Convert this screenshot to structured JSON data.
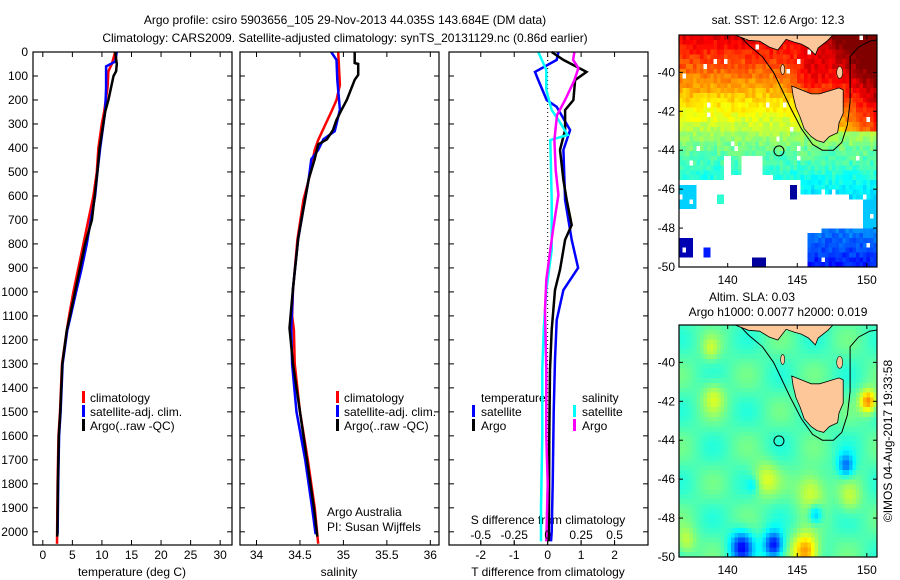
{
  "title": {
    "line1": "Argo profile: csiro 5903656_105 29-Nov-2013 44.035S 143.684E (DM data)",
    "line2": "Climatology: CARS2009. Satellite-adjusted climatology: synTS_20131129.nc (0.86d earlier)"
  },
  "credits": {
    "line1": "Argo Australia",
    "line2": "PI: Susan Wijffels"
  },
  "watermark": "©IMOS 04-Aug-2017 19:33:58",
  "chart_data": [
    {
      "type": "line",
      "id": "temperature",
      "xlabel": "temperature (deg C)",
      "ylabel": "depth",
      "xlim": [
        -1.66,
        32
      ],
      "ylim": [
        2055,
        0
      ],
      "xticks": [
        0,
        5,
        10,
        15,
        20,
        25,
        30
      ],
      "yticks": [
        0,
        100,
        200,
        300,
        400,
        500,
        600,
        700,
        800,
        900,
        1000,
        1100,
        1200,
        1300,
        1400,
        1500,
        1600,
        1700,
        1800,
        1900,
        2000
      ],
      "legend": [
        "climatology",
        "satellite-adj. clim.",
        "Argo(..raw -QC)"
      ],
      "series": [
        {
          "name": "climatology",
          "color": "#ff0000",
          "points": [
            [
              12.24,
              0
            ],
            [
              11.67,
              50
            ],
            [
              11.1,
              80
            ],
            [
              10.94,
              150
            ],
            [
              10.37,
              250
            ],
            [
              9.98,
              300
            ],
            [
              9.41,
              400
            ],
            [
              9.13,
              500
            ],
            [
              8.56,
              600
            ],
            [
              7.71,
              700
            ],
            [
              6.87,
              800
            ],
            [
              6.02,
              900
            ],
            [
              5.17,
              1000
            ],
            [
              4.44,
              1100
            ],
            [
              4.05,
              1160
            ],
            [
              3.25,
              1300
            ],
            [
              2.9,
              1500
            ],
            [
              2.66,
              1600
            ],
            [
              2.5,
              1800
            ],
            [
              2.4,
              2050
            ]
          ]
        },
        {
          "name": "satellite-adj. clim.",
          "color": "#0000ff",
          "points": [
            [
              12.52,
              0
            ],
            [
              12.24,
              40
            ],
            [
              10.71,
              60
            ],
            [
              10.71,
              150
            ],
            [
              10.54,
              250
            ],
            [
              9.7,
              400
            ],
            [
              9.24,
              500
            ],
            [
              8.85,
              600
            ],
            [
              8.12,
              700
            ],
            [
              7.44,
              800
            ],
            [
              6.59,
              900
            ],
            [
              5.63,
              1000
            ],
            [
              4.72,
              1100
            ],
            [
              4.15,
              1160
            ],
            [
              3.35,
              1300
            ],
            [
              3.0,
              1500
            ],
            [
              2.75,
              1600
            ],
            [
              2.6,
              1800
            ],
            [
              2.5,
              2010
            ]
          ]
        },
        {
          "name": "Argo(..raw -QC)",
          "color": "#000000",
          "points": [
            [
              12.24,
              0
            ],
            [
              12.52,
              50
            ],
            [
              12.4,
              80
            ],
            [
              11.95,
              100
            ],
            [
              11.1,
              200
            ],
            [
              10.54,
              250
            ],
            [
              9.6,
              400
            ],
            [
              9.24,
              500
            ],
            [
              8.3,
              700
            ],
            [
              7.15,
              800
            ],
            [
              6.3,
              900
            ],
            [
              5.45,
              1000
            ],
            [
              4.6,
              1100
            ],
            [
              4.05,
              1160
            ],
            [
              3.3,
              1300
            ],
            [
              2.95,
              1500
            ],
            [
              2.7,
              1600
            ],
            [
              2.55,
              1800
            ],
            [
              2.45,
              2020
            ]
          ]
        }
      ]
    },
    {
      "type": "line",
      "id": "salinity",
      "xlabel": "salinity",
      "xlim": [
        33.81,
        36.1
      ],
      "ylim": [
        2055,
        0
      ],
      "xticks": [
        34,
        34.5,
        35,
        35.5,
        36
      ],
      "legend": [
        "climatology",
        "satellite-adj. clim.",
        "Argo(..raw -QC)"
      ],
      "series": [
        {
          "name": "climatology",
          "color": "#ff0000",
          "points": [
            [
              34.94,
              0
            ],
            [
              34.96,
              137
            ],
            [
              34.92,
              200
            ],
            [
              34.87,
              242
            ],
            [
              34.79,
              304
            ],
            [
              34.71,
              367
            ],
            [
              34.67,
              408
            ],
            [
              34.6,
              533
            ],
            [
              34.54,
              617
            ],
            [
              34.47,
              783
            ],
            [
              34.42,
              992
            ],
            [
              34.41,
              1100
            ],
            [
              34.43,
              1158
            ],
            [
              34.44,
              1300
            ],
            [
              34.5,
              1500
            ],
            [
              34.59,
              1700
            ],
            [
              34.67,
              1900
            ],
            [
              34.71,
              2050
            ]
          ]
        },
        {
          "name": "satellite-adj. clim.",
          "color": "#0000ff",
          "points": [
            [
              34.86,
              0
            ],
            [
              34.92,
              33
            ],
            [
              34.93,
              116
            ],
            [
              34.96,
              240
            ],
            [
              34.92,
              300
            ],
            [
              34.9,
              330
            ],
            [
              34.77,
              364
            ],
            [
              34.71,
              408
            ],
            [
              34.63,
              447
            ],
            [
              34.6,
              530
            ],
            [
              34.54,
              654
            ],
            [
              34.48,
              778
            ],
            [
              34.42,
              985
            ],
            [
              34.4,
              1151
            ],
            [
              34.41,
              1300
            ],
            [
              34.46,
              1500
            ],
            [
              34.56,
              1700
            ],
            [
              34.64,
              1900
            ],
            [
              34.68,
              2010
            ]
          ]
        },
        {
          "name": "Argo(..raw -QC)",
          "color": "#000000",
          "points": [
            [
              35.13,
              0
            ],
            [
              35.13,
              46
            ],
            [
              35.17,
              50
            ],
            [
              35.17,
              95
            ],
            [
              35.13,
              116
            ],
            [
              35.04,
              199
            ],
            [
              34.98,
              240
            ],
            [
              34.92,
              283
            ],
            [
              34.88,
              325
            ],
            [
              34.81,
              364
            ],
            [
              34.71,
              385
            ],
            [
              34.67,
              447
            ],
            [
              34.6,
              530
            ],
            [
              34.54,
              654
            ],
            [
              34.48,
              778
            ],
            [
              34.42,
              985
            ],
            [
              34.38,
              1151
            ],
            [
              34.42,
              1300
            ],
            [
              34.5,
              1500
            ],
            [
              34.58,
              1700
            ],
            [
              34.66,
              1900
            ],
            [
              34.7,
              2020
            ]
          ]
        }
      ]
    },
    {
      "type": "line",
      "id": "difference",
      "xlabel": "T difference from climatology",
      "x2label": "S difference from climatology",
      "xlim": [
        -2.95,
        3.0
      ],
      "ylim": [
        2055,
        0
      ],
      "xticks": [
        -2,
        -1,
        0,
        1,
        2
      ],
      "x2ticks": [
        -0.5,
        -0.25,
        0,
        0.25,
        0.5
      ],
      "x2_scale_per_x": 0.25,
      "legend_groups": [
        {
          "title": "temperature",
          "entries": [
            "satellite",
            "Argo"
          ]
        },
        {
          "title": "salinity",
          "entries": [
            "satellite",
            "Argo"
          ]
        }
      ],
      "series": [
        {
          "name": "temperature satellite",
          "axis": "T",
          "color": "#0000ff",
          "points": [
            [
              0.32,
              0
            ],
            [
              0.27,
              33
            ],
            [
              -0.38,
              83
            ],
            [
              -0.28,
              117
            ],
            [
              -0.03,
              200
            ],
            [
              0.27,
              229
            ],
            [
              0.67,
              325
            ],
            [
              0.47,
              408
            ],
            [
              0.52,
              617
            ],
            [
              0.72,
              783
            ],
            [
              0.91,
              900
            ],
            [
              0.47,
              992
            ],
            [
              0.27,
              1117
            ],
            [
              0.22,
              1283
            ],
            [
              0.18,
              1500
            ],
            [
              0.15,
              1800
            ],
            [
              0.12,
              2000
            ],
            [
              0.1,
              2040
            ]
          ]
        },
        {
          "name": "temperature Argo",
          "axis": "T",
          "color": "#000000",
          "points": [
            [
              0.12,
              0
            ],
            [
              0.47,
              33
            ],
            [
              1.16,
              83
            ],
            [
              0.82,
              117
            ],
            [
              0.77,
              200
            ],
            [
              0.52,
              242
            ],
            [
              0.52,
              325
            ],
            [
              0.37,
              408
            ],
            [
              0.47,
              533
            ],
            [
              0.57,
              617
            ],
            [
              0.72,
              721
            ],
            [
              0.52,
              783
            ],
            [
              0.37,
              908
            ],
            [
              0.22,
              992
            ],
            [
              0.12,
              1158
            ],
            [
              0.07,
              1325
            ],
            [
              0.05,
              1600
            ],
            [
              0.04,
              1900
            ],
            [
              0.03,
              2040
            ]
          ]
        },
        {
          "name": "salinity satellite",
          "axis": "S",
          "color": "#00ffff",
          "points": [
            [
              -0.07,
              0
            ],
            [
              -0.01,
              75
            ],
            [
              -0.01,
              158
            ],
            [
              0.03,
              242
            ],
            [
              0.08,
              283
            ],
            [
              0.15,
              346
            ],
            [
              0.02,
              367
            ],
            [
              0.03,
              617
            ],
            [
              0.03,
              825
            ],
            [
              -0.01,
              992
            ],
            [
              -0.03,
              1158
            ],
            [
              -0.04,
              1325
            ],
            [
              -0.04,
              1600
            ],
            [
              -0.05,
              1900
            ],
            [
              -0.05,
              2040
            ]
          ]
        },
        {
          "name": "salinity Argo",
          "axis": "S",
          "color": "#ff00ff",
          "points": [
            [
              0.2,
              0
            ],
            [
              0.19,
              33
            ],
            [
              0.23,
              67
            ],
            [
              0.2,
              117
            ],
            [
              0.13,
              200
            ],
            [
              0.07,
              263
            ],
            [
              0.05,
              367
            ],
            [
              0.06,
              492
            ],
            [
              0.08,
              596
            ],
            [
              0.04,
              742
            ],
            [
              -0.01,
              950
            ],
            [
              -0.02,
              1075
            ],
            [
              -0.01,
              1325
            ],
            [
              -0.01,
              1600
            ],
            [
              0.0,
              1800
            ],
            [
              -0.01,
              2040
            ]
          ]
        }
      ]
    },
    {
      "type": "heatmap",
      "id": "sst-map",
      "title": "sat. SST: 12.6 Argo: 12.3",
      "xlim": [
        136.5,
        150.73
      ],
      "ylim": [
        -50,
        -38.08
      ],
      "xticks": [
        140,
        145,
        150
      ],
      "yticks": [
        -40,
        -42,
        -44,
        -46,
        -48,
        -50
      ],
      "colormap": "jet",
      "float_position": {
        "lon": 143.684,
        "lat": -44.035
      }
    },
    {
      "type": "heatmap",
      "id": "sla-map",
      "title": "Altim. SLA: 0.03",
      "subtitle": "Argo h1000: 0.0077 h2000: 0.019",
      "xlim": [
        136.5,
        150.73
      ],
      "ylim": [
        -50,
        -38.08
      ],
      "xticks": [
        140,
        145,
        150
      ],
      "yticks": [
        -40,
        -42,
        -44,
        -46,
        -48,
        -50
      ],
      "colormap": "jet",
      "float_position": {
        "lon": 143.684,
        "lat": -44.035
      }
    }
  ]
}
